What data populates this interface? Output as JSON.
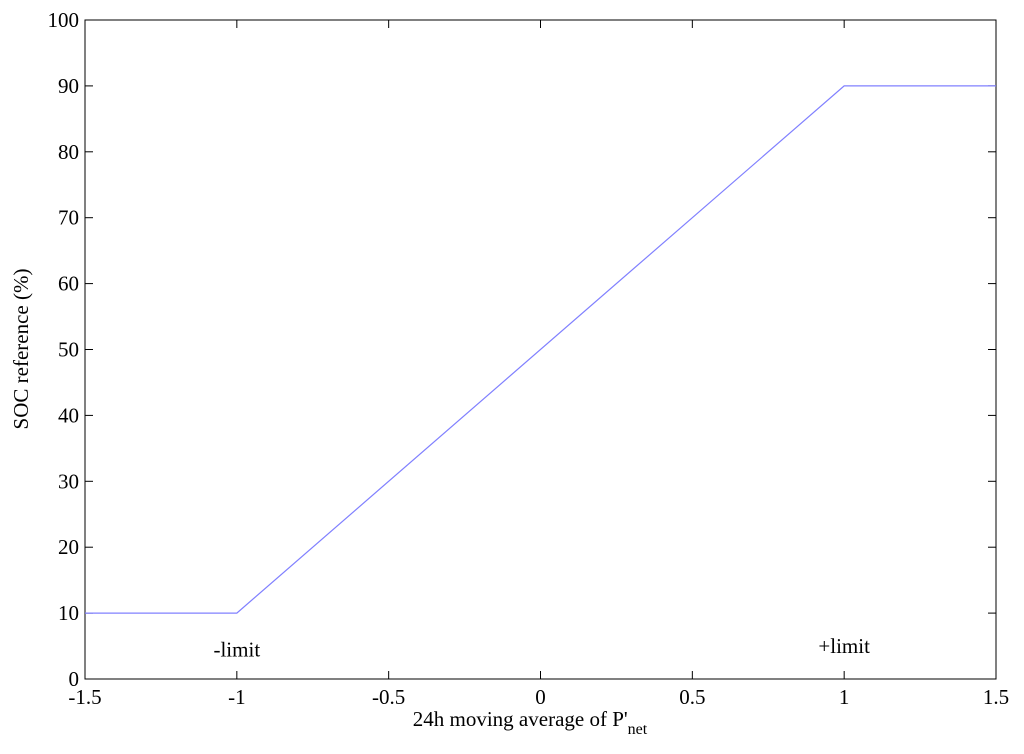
{
  "chart_data": {
    "type": "line",
    "title": "",
    "xlabel": "24h moving average of P'",
    "xlabel_subscript": "net",
    "ylabel": "SOC reference (%)",
    "xlim": [
      -1.5,
      1.5
    ],
    "ylim": [
      0,
      100
    ],
    "xticks": [
      -1.5,
      -1,
      -0.5,
      0,
      0.5,
      1,
      1.5
    ],
    "xtick_labels": [
      "-1.5",
      "-1",
      "-0.5",
      "0",
      "0.5",
      "1",
      "1.5"
    ],
    "yticks": [
      0,
      10,
      20,
      30,
      40,
      50,
      60,
      70,
      80,
      90,
      100
    ],
    "ytick_labels": [
      "0",
      "10",
      "20",
      "30",
      "40",
      "50",
      "60",
      "70",
      "80",
      "90",
      "100"
    ],
    "grid": false,
    "series": [
      {
        "color": "#8080ff",
        "x": [
          -1.5,
          -1,
          1,
          1.5
        ],
        "y": [
          10,
          10,
          90,
          90
        ]
      }
    ],
    "annotations": [
      {
        "text": "-limit",
        "x": -1,
        "y": 4.5
      },
      {
        "text": "+limit",
        "x": 1,
        "y": 5
      }
    ]
  }
}
